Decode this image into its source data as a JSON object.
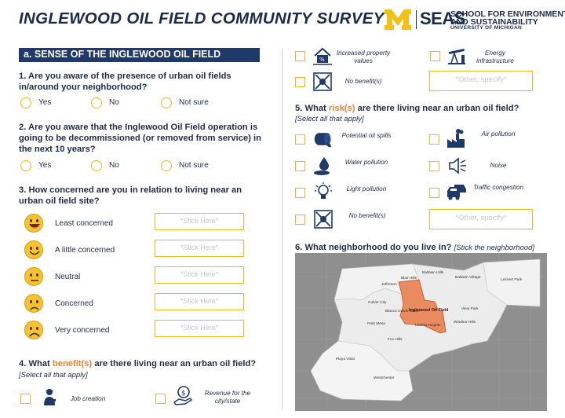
{
  "header": {
    "title": "INGLEWOOD OIL FIELD COMMUNITY SURVEY",
    "logo_seas": "SEAS",
    "logo_line1": "SCHOOL FOR ENVIRONMENT",
    "logo_line2": "AND SUSTAINABILITY",
    "logo_line3": "UNIVERSITY OF MICHIGAN"
  },
  "section_a": {
    "heading": "a. SENSE OF THE INGLEWOOD OIL FIELD"
  },
  "q1": {
    "text": "1. Are you aware of the presence of urban oil fields in/around your neighborhood?",
    "options": [
      "Yes",
      "No",
      "Not sure"
    ]
  },
  "q2": {
    "text": "2. Are you aware that the Inglewood Oil Field operation is going to be decommissioned (or removed from service) in the next 10 years?",
    "options": [
      "Yes",
      "No",
      "Not sure"
    ]
  },
  "q3": {
    "text": "3. How concerned are you in relation to living near an urban oil field site?",
    "levels": [
      "Least concerned",
      "A little concerned",
      "Neutral",
      "Concerned",
      "Very concerned"
    ],
    "stick_label": "*Stick Here*"
  },
  "q4": {
    "prefix": "4. What ",
    "highlight": "benefit(s)",
    "suffix": " are there living near an urban oil field?",
    "note": "[Select all that apply]",
    "items": [
      {
        "label": "Job creation",
        "icon": "worker-icon"
      },
      {
        "label": "Revenue for the city/state",
        "icon": "money-hand-icon"
      },
      {
        "label": "Increased property values",
        "icon": "house-value-icon"
      },
      {
        "label": "Energy infrastructure",
        "icon": "oil-pump-icon"
      },
      {
        "label": "No benefit(s)",
        "icon": "crossed-out-icon"
      }
    ],
    "other_placeholder": "*Other, specify*"
  },
  "q5": {
    "prefix": "5. What ",
    "highlight": "risk(s)",
    "suffix": " are there living near an urban oil field?",
    "note": "[Select all that apply]",
    "items": [
      {
        "label": "Potential oil spills",
        "icon": "oil-barrel-icon"
      },
      {
        "label": "Air pollution",
        "icon": "factory-icon"
      },
      {
        "label": "Water pollution",
        "icon": "water-drop-icon"
      },
      {
        "label": "Noise",
        "icon": "speaker-icon"
      },
      {
        "label": "Light pollution",
        "icon": "lightbulb-icon"
      },
      {
        "label": "Traffic congestion",
        "icon": "cars-icon"
      },
      {
        "label": "No benefit(s)",
        "icon": "crossed-out-icon"
      }
    ],
    "other_placeholder": "*Other, specify*"
  },
  "q6": {
    "text": "6. What neighborhood do you live in?",
    "note": "[Stick the neighborhood]",
    "oil_field_label": "Inglewood Oil Field",
    "neighborhoods": [
      "Baldwin Hills",
      "Baldwin Village",
      "Leimert Park",
      "Jefferson",
      "Park Mesa",
      "Culver City",
      "Blair Hills",
      "Blanco Culver Crest",
      "Ladera Heights",
      "View Park",
      "Windsor Hills",
      "Fox Hills",
      "Playa Vista",
      "Westchester"
    ]
  },
  "colors": {
    "navy": "#1f3a68",
    "accent": "#e8813a",
    "gold": "#f0b81c",
    "oil_field": "#e98a5f"
  }
}
